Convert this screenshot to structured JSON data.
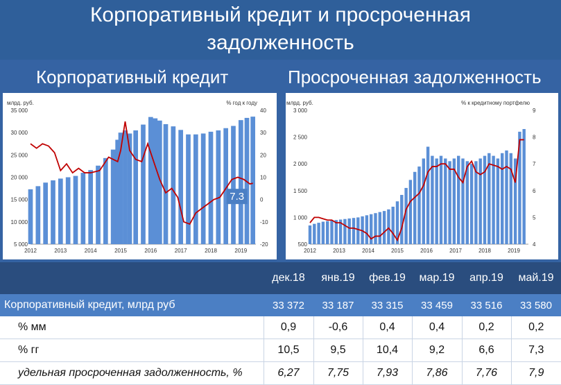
{
  "title_line1": "Корпоративный кредит и просроченная",
  "title_line2": "задолженность",
  "subtitle_left": "Корпоративный кредит",
  "subtitle_right": "Просроченная задолженность",
  "colors": {
    "bar": "#5b8fd6",
    "line": "#c00000",
    "band": "#3563a3",
    "table_head": "#2a4d7e",
    "table_highlight": "#4b7fc4"
  },
  "chart_data": [
    {
      "type": "bar",
      "units_left": "млрд. руб.",
      "units_right": "% год к году",
      "x_tick_labels": [
        "2012",
        "2013",
        "2014",
        "2015",
        "2016",
        "2017",
        "2018",
        "2019"
      ],
      "y_left_ticks": [
        "5 000",
        "10 000",
        "15 000",
        "20 000",
        "25 000",
        "30 000",
        "35 000"
      ],
      "y_right_ticks": [
        "-20",
        "-10",
        "0",
        "10",
        "20",
        "30",
        "40"
      ],
      "ylim_left": [
        5000,
        35000
      ],
      "ylim_right": [
        -20,
        40
      ],
      "x_range": [
        2012.0,
        2019.5
      ],
      "annotation": "7.3",
      "series": [
        {
          "axis": "left",
          "kind": "bar",
          "x": [
            2012.0,
            2012.25,
            2012.5,
            2012.75,
            2013.0,
            2013.25,
            2013.5,
            2013.75,
            2014.0,
            2014.25,
            2014.5,
            2014.75,
            2014.9,
            2015.0,
            2015.15,
            2015.3,
            2015.5,
            2015.75,
            2016.0,
            2016.15,
            2016.3,
            2016.5,
            2016.75,
            2017.0,
            2017.25,
            2017.5,
            2017.75,
            2018.0,
            2018.25,
            2018.5,
            2018.75,
            2019.0,
            2019.2,
            2019.4
          ],
          "values": [
            17300,
            18000,
            18800,
            19300,
            19700,
            20000,
            20300,
            21000,
            21600,
            22600,
            24300,
            26200,
            28400,
            30000,
            30500,
            29800,
            30500,
            31800,
            33500,
            33200,
            32700,
            31900,
            31400,
            30600,
            29600,
            29600,
            29800,
            30200,
            30500,
            31000,
            31500,
            32800,
            33300,
            33580
          ]
        },
        {
          "axis": "right",
          "kind": "line",
          "x": [
            2012.0,
            2012.2,
            2012.4,
            2012.6,
            2012.8,
            2013.0,
            2013.2,
            2013.4,
            2013.6,
            2013.8,
            2014.0,
            2014.3,
            2014.6,
            2014.9,
            2015.0,
            2015.15,
            2015.3,
            2015.5,
            2015.7,
            2015.9,
            2016.1,
            2016.3,
            2016.5,
            2016.7,
            2016.9,
            2017.1,
            2017.3,
            2017.5,
            2017.7,
            2017.9,
            2018.1,
            2018.3,
            2018.5,
            2018.7,
            2018.9,
            2019.1,
            2019.3,
            2019.4
          ],
          "values": [
            25,
            23,
            25,
            24,
            21,
            13,
            16,
            12,
            14,
            12,
            12,
            13,
            19,
            17,
            22,
            35,
            22,
            18,
            17,
            25,
            17,
            9,
            3,
            5,
            1,
            -10,
            -11,
            -6,
            -4,
            -2,
            0,
            1,
            5,
            9,
            10,
            9,
            7,
            7.3
          ]
        }
      ]
    },
    {
      "type": "bar",
      "units_left": "млрд. руб.",
      "units_right": "% к кредитному портфелю",
      "x_tick_labels": [
        "2012",
        "2013",
        "2014",
        "2015",
        "2016",
        "2017",
        "2018",
        "2019"
      ],
      "y_left_ticks": [
        "500",
        "1 000",
        "1 500",
        "2 000",
        "2 500",
        "3 000"
      ],
      "y_right_ticks": [
        "4",
        "5",
        "6",
        "7",
        "8",
        "9"
      ],
      "ylim_left": [
        500,
        3000
      ],
      "ylim_right": [
        4,
        9
      ],
      "x_range": [
        2012.0,
        2019.5
      ],
      "series": [
        {
          "axis": "left",
          "kind": "bar",
          "x": [
            2012.0,
            2012.15,
            2012.3,
            2012.45,
            2012.6,
            2012.75,
            2012.9,
            2013.05,
            2013.2,
            2013.35,
            2013.5,
            2013.65,
            2013.8,
            2013.95,
            2014.1,
            2014.25,
            2014.4,
            2014.55,
            2014.7,
            2014.85,
            2015.0,
            2015.15,
            2015.3,
            2015.45,
            2015.6,
            2015.75,
            2015.9,
            2016.05,
            2016.2,
            2016.35,
            2016.5,
            2016.65,
            2016.8,
            2016.95,
            2017.1,
            2017.25,
            2017.4,
            2017.55,
            2017.7,
            2017.85,
            2018.0,
            2018.15,
            2018.3,
            2018.45,
            2018.6,
            2018.75,
            2018.9,
            2019.05,
            2019.2,
            2019.35
          ],
          "values": [
            850,
            880,
            900,
            920,
            930,
            940,
            950,
            960,
            970,
            980,
            990,
            1000,
            1020,
            1040,
            1060,
            1080,
            1100,
            1120,
            1150,
            1200,
            1300,
            1420,
            1550,
            1700,
            1850,
            1950,
            2100,
            2320,
            2150,
            2100,
            2150,
            2100,
            2050,
            2100,
            2150,
            2100,
            2050,
            2000,
            2050,
            2100,
            2150,
            2200,
            2150,
            2100,
            2200,
            2250,
            2200,
            2100,
            2600,
            2650
          ]
        },
        {
          "axis": "right",
          "kind": "line",
          "x": [
            2012.0,
            2012.15,
            2012.3,
            2012.45,
            2012.6,
            2012.75,
            2012.9,
            2013.05,
            2013.2,
            2013.35,
            2013.5,
            2013.65,
            2013.8,
            2013.95,
            2014.1,
            2014.25,
            2014.4,
            2014.55,
            2014.7,
            2014.85,
            2015.0,
            2015.15,
            2015.3,
            2015.45,
            2015.6,
            2015.75,
            2015.9,
            2016.05,
            2016.2,
            2016.35,
            2016.5,
            2016.65,
            2016.8,
            2016.95,
            2017.1,
            2017.25,
            2017.4,
            2017.55,
            2017.7,
            2017.85,
            2018.0,
            2018.15,
            2018.3,
            2018.45,
            2018.6,
            2018.75,
            2018.9,
            2019.05,
            2019.2,
            2019.35
          ],
          "values": [
            4.8,
            5.0,
            5.0,
            4.95,
            4.9,
            4.9,
            4.8,
            4.8,
            4.7,
            4.6,
            4.6,
            4.55,
            4.5,
            4.4,
            4.2,
            4.3,
            4.3,
            4.45,
            4.6,
            4.4,
            4.15,
            4.6,
            5.3,
            5.6,
            5.75,
            5.9,
            6.2,
            6.7,
            6.9,
            6.9,
            7.0,
            7.0,
            6.8,
            6.8,
            6.5,
            6.3,
            6.9,
            7.1,
            6.7,
            6.6,
            6.7,
            7.0,
            6.95,
            6.9,
            6.8,
            6.9,
            6.8,
            6.3,
            7.9,
            7.9
          ]
        }
      ]
    }
  ],
  "table": {
    "columns": [
      "дек.18",
      "янв.19",
      "фев.19",
      "мар.19",
      "апр.19",
      "май.19"
    ],
    "rows": [
      {
        "label": "Корпоративный кредит, млрд руб",
        "values": [
          "33 372",
          "33 187",
          "33 315",
          "33 459",
          "33 516",
          "33 580"
        ]
      },
      {
        "label": "% мм",
        "values": [
          "0,9",
          "-0,6",
          "0,4",
          "0,4",
          "0,2",
          "0,2"
        ]
      },
      {
        "label": "% гг",
        "values": [
          "10,5",
          "9,5",
          "10,4",
          "9,2",
          "6,6",
          "7,3"
        ]
      },
      {
        "label": "удельная просроченная задолженность, %",
        "values": [
          "6,27",
          "7,75",
          "7,93",
          "7,86",
          "7,76",
          "7,9"
        ]
      }
    ]
  }
}
